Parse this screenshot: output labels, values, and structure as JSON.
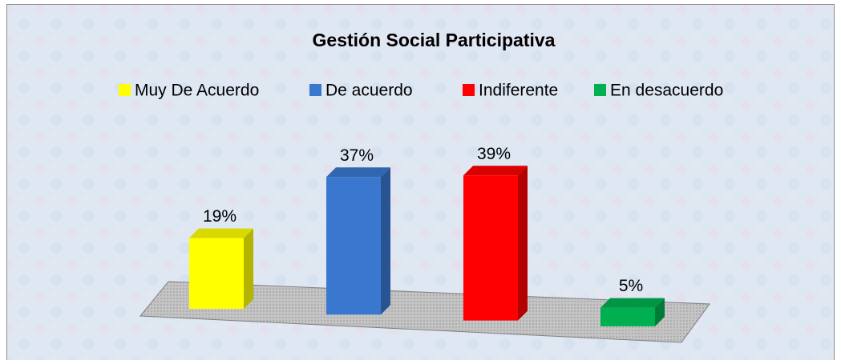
{
  "chart_data": {
    "type": "bar3d",
    "title": "Gestión Social Participativa",
    "categories": [
      "Muy De Acuerdo",
      "De acuerdo",
      "Indiferente",
      "En desacuerdo"
    ],
    "values": [
      19,
      37,
      39,
      5
    ],
    "value_labels": [
      "19%",
      "37%",
      "39%",
      "5%"
    ],
    "colors": [
      "#ffff00",
      "#3a78d0",
      "#ff0000",
      "#00b050"
    ]
  }
}
